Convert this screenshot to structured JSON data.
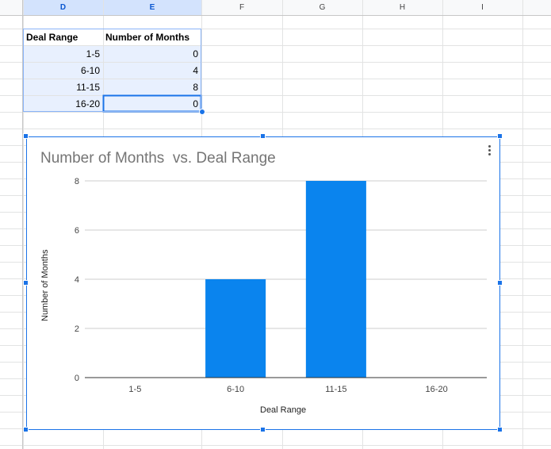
{
  "sheet": {
    "column_headers": [
      "D",
      "E",
      "F",
      "G",
      "H",
      "I"
    ],
    "table": {
      "headers": [
        "Deal Range",
        "Number of Months"
      ],
      "rows": [
        {
          "range": "1-5",
          "months": "0"
        },
        {
          "range": "6-10",
          "months": "4"
        },
        {
          "range": "11-15",
          "months": "8"
        },
        {
          "range": "16-20",
          "months": "0"
        }
      ]
    }
  },
  "chart_data": {
    "type": "bar",
    "title": "Number of Months  vs. Deal Range",
    "xlabel": "Deal Range",
    "ylabel": "Number of Months",
    "categories": [
      "1-5",
      "6-10",
      "11-15",
      "16-20"
    ],
    "values": [
      0,
      4,
      8,
      0
    ],
    "ylim": [
      0,
      8
    ],
    "yticks": [
      0,
      2,
      4,
      6,
      8
    ],
    "grid": true,
    "bar_color": "#0a84ee"
  },
  "colors": {
    "selection": "#1a73e8",
    "selected_header_bg": "#d3e3fd",
    "selected_cell_bg": "#e8f0fe"
  }
}
